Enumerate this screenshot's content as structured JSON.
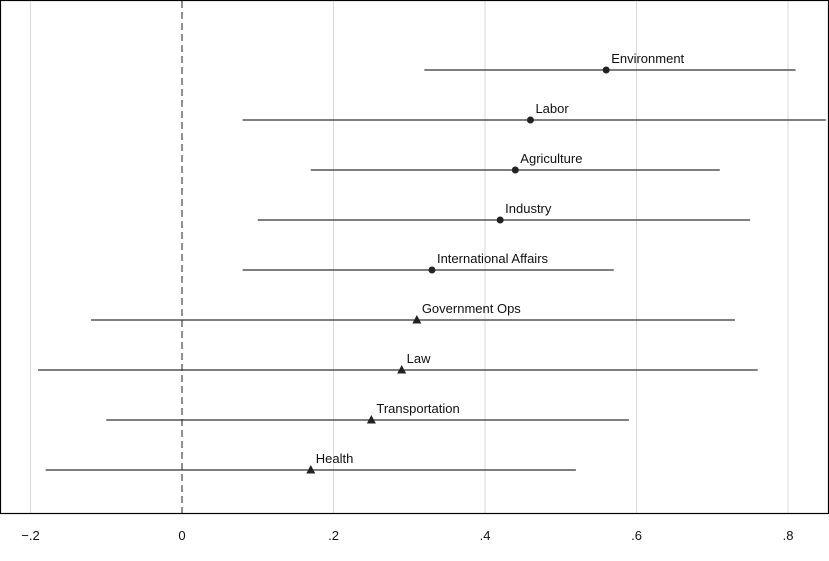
{
  "chart_data": {
    "type": "scatter",
    "title": "",
    "xlabel": "",
    "ylabel": "",
    "xlim": [
      -0.2,
      0.85
    ],
    "grid": true,
    "reference_line": 0,
    "x_ticks": [
      {
        "value": -0.2,
        "label": "−.2"
      },
      {
        "value": 0,
        "label": "0"
      },
      {
        "value": 0.2,
        "label": ".2"
      },
      {
        "value": 0.4,
        "label": ".4"
      },
      {
        "value": 0.6,
        "label": ".6"
      },
      {
        "value": 0.8,
        "label": ".8"
      }
    ],
    "estimates": [
      {
        "label": "Environment",
        "value": 0.56,
        "lower": 0.32,
        "upper": 0.81,
        "marker": "circle"
      },
      {
        "label": "Labor",
        "value": 0.46,
        "lower": 0.08,
        "upper": 0.85,
        "marker": "circle"
      },
      {
        "label": "Agriculture",
        "value": 0.44,
        "lower": 0.17,
        "upper": 0.71,
        "marker": "circle"
      },
      {
        "label": "Industry",
        "value": 0.42,
        "lower": 0.1,
        "upper": 0.75,
        "marker": "circle"
      },
      {
        "label": "International Affairs",
        "value": 0.33,
        "lower": 0.08,
        "upper": 0.57,
        "marker": "circle"
      },
      {
        "label": "Government Ops",
        "value": 0.31,
        "lower": -0.12,
        "upper": 0.73,
        "marker": "triangle"
      },
      {
        "label": "Law",
        "value": 0.29,
        "lower": -0.19,
        "upper": 0.76,
        "marker": "triangle"
      },
      {
        "label": "Transportation",
        "value": 0.25,
        "lower": -0.1,
        "upper": 0.59,
        "marker": "triangle"
      },
      {
        "label": "Health",
        "value": 0.17,
        "lower": -0.18,
        "upper": 0.52,
        "marker": "triangle"
      }
    ]
  }
}
